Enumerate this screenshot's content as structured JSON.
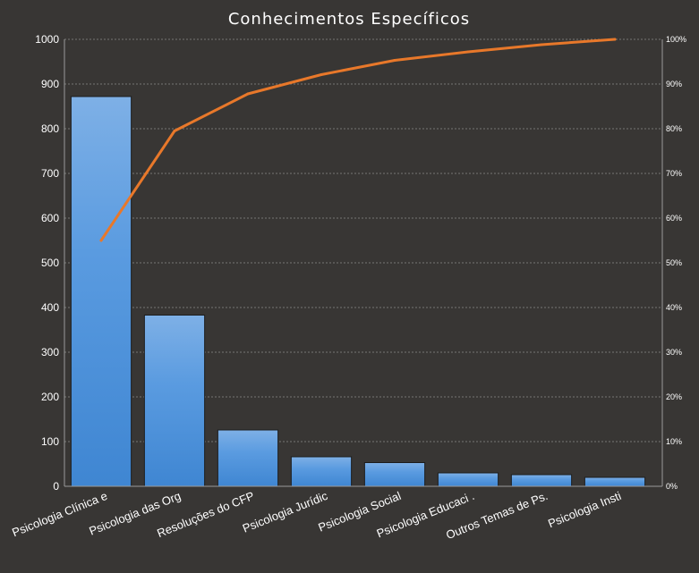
{
  "chart_data": {
    "type": "bar",
    "title": "Conhecimentos Específicos",
    "categories": [
      "Psicologia Clínica e",
      "Psicologia das Org",
      "Resoluções do CFP",
      "Psicologia Jurídic",
      "Psicologia Social",
      "Psicologia Educaci .",
      "Outros Temas de Ps.",
      "Psicologia Insti"
    ],
    "series": [
      {
        "type": "bar",
        "axis": "left",
        "values": [
          872,
          383,
          126,
          66,
          53,
          30,
          26,
          20
        ],
        "color": "#4a8fd8"
      },
      {
        "type": "line",
        "axis": "right",
        "values": [
          55,
          79.5,
          87.8,
          92.1,
          95.3,
          97.2,
          98.8,
          100
        ],
        "color": "#e8782a"
      }
    ],
    "ylim": [
      0,
      1000
    ],
    "yticks": [
      "0",
      "100",
      "200",
      "300",
      "400",
      "500",
      "600",
      "700",
      "800",
      "900",
      "1000"
    ],
    "y2lim": [
      0,
      100
    ],
    "y2ticks": [
      "0%",
      "10%",
      "20%",
      "30%",
      "40%",
      "50%",
      "60%",
      "70%",
      "80%",
      "90%",
      "100%"
    ],
    "grid": true,
    "legend": "none"
  }
}
